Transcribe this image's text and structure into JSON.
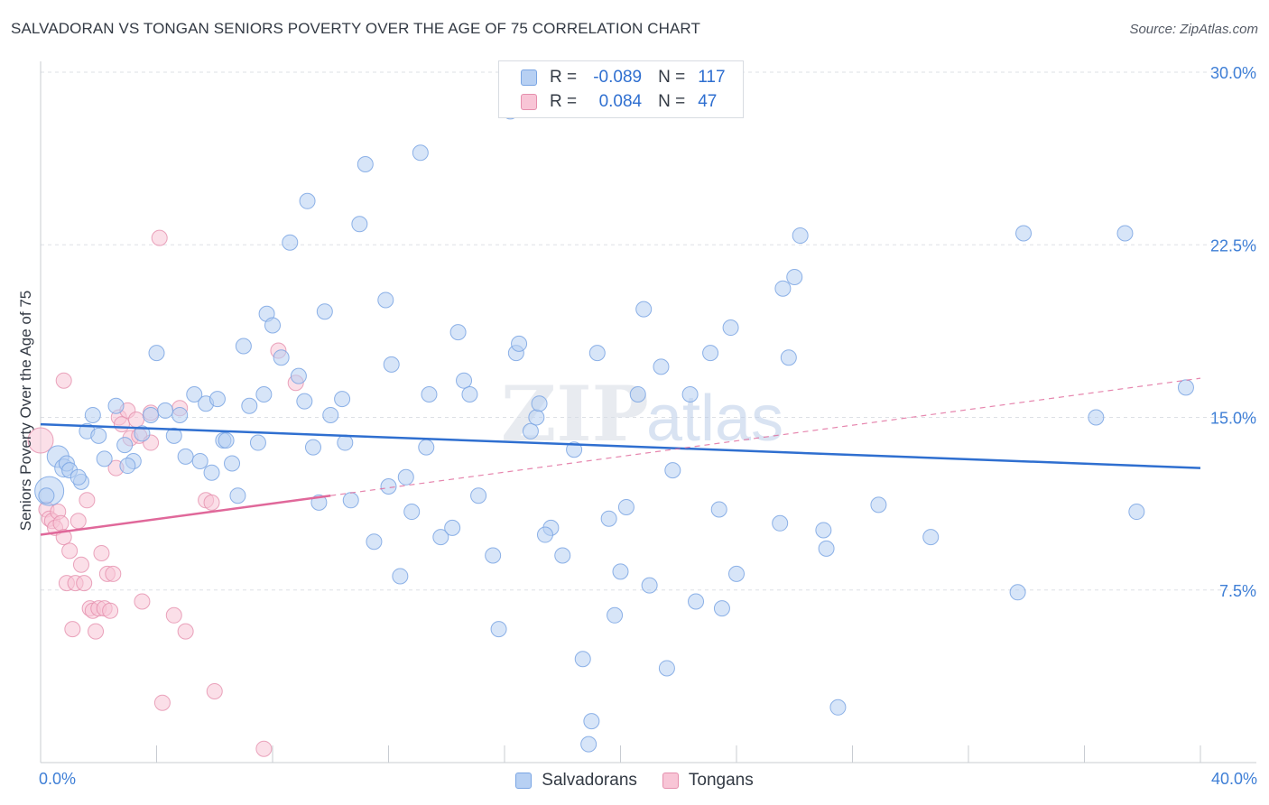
{
  "header": {
    "title": "SALVADORAN VS TONGAN SENIORS POVERTY OVER THE AGE OF 75 CORRELATION CHART",
    "source": "Source: ZipAtlas.com"
  },
  "watermark": {
    "zip": "ZIP",
    "atlas": "atlas"
  },
  "legend_top": {
    "rows": [
      {
        "r_label": "R =",
        "r_value": "-0.089",
        "n_label": "N =",
        "n_value": "117"
      },
      {
        "r_label": "R =",
        "r_value": "0.084",
        "n_label": "N =",
        "n_value": "47"
      }
    ]
  },
  "legend_bottom": {
    "items": [
      "Salvadorans",
      "Tongans"
    ]
  },
  "colors": {
    "blue_fill": "#b7d0f3",
    "blue_stroke": "#7aa5e3",
    "blue_line": "#2f6fd0",
    "pink_fill": "#f8c5d6",
    "pink_stroke": "#e58fad",
    "pink_line": "#e0689a",
    "tick_label": "#3f7fd6",
    "grid": "#dde0e5"
  },
  "chart_data": {
    "type": "scatter",
    "title": "SALVADORAN VS TONGAN SENIORS POVERTY OVER THE AGE OF 75 CORRELATION CHART",
    "xlabel": "",
    "ylabel": "Seniors Poverty Over the Age of 75",
    "xlim": [
      0,
      40
    ],
    "ylim": [
      0,
      30
    ],
    "x_ticks": [
      0,
      4,
      8,
      12,
      16,
      20,
      24,
      28,
      32,
      36,
      40
    ],
    "x_tick_labels": {
      "min": "0.0%",
      "max": "40.0%"
    },
    "y_ticks": [
      7.5,
      15.0,
      22.5,
      30.0
    ],
    "y_tick_labels": [
      "7.5%",
      "15.0%",
      "22.5%",
      "30.0%"
    ],
    "grid": true,
    "legend_position": "top-center",
    "series": [
      {
        "name": "Salvadorans",
        "r": -0.089,
        "n": 117,
        "trend": {
          "x": [
            0,
            40
          ],
          "y": [
            14.7,
            12.8
          ],
          "style": "solid"
        },
        "points": [
          [
            0.3,
            11.8
          ],
          [
            0.6,
            13.3
          ],
          [
            0.8,
            12.8
          ],
          [
            0.9,
            13.0
          ],
          [
            1.0,
            12.7
          ],
          [
            1.4,
            12.2
          ],
          [
            1.6,
            14.4
          ],
          [
            1.8,
            15.1
          ],
          [
            2.0,
            14.2
          ],
          [
            2.2,
            13.2
          ],
          [
            2.6,
            15.5
          ],
          [
            2.9,
            13.8
          ],
          [
            3.2,
            13.1
          ],
          [
            3.5,
            14.3
          ],
          [
            3.8,
            15.1
          ],
          [
            4.0,
            17.8
          ],
          [
            4.3,
            15.3
          ],
          [
            4.6,
            14.2
          ],
          [
            4.8,
            15.1
          ],
          [
            5.0,
            13.3
          ],
          [
            5.3,
            16.0
          ],
          [
            5.5,
            13.1
          ],
          [
            5.7,
            15.6
          ],
          [
            5.9,
            12.6
          ],
          [
            6.1,
            15.8
          ],
          [
            6.3,
            14.0
          ],
          [
            6.6,
            13.0
          ],
          [
            6.8,
            11.6
          ],
          [
            7.0,
            18.1
          ],
          [
            7.2,
            15.5
          ],
          [
            7.5,
            13.9
          ],
          [
            7.7,
            16.0
          ],
          [
            7.8,
            19.5
          ],
          [
            8.0,
            19.0
          ],
          [
            8.3,
            17.6
          ],
          [
            8.6,
            22.6
          ],
          [
            8.9,
            16.8
          ],
          [
            9.1,
            15.7
          ],
          [
            9.4,
            13.7
          ],
          [
            9.6,
            11.3
          ],
          [
            9.8,
            19.6
          ],
          [
            10.0,
            15.1
          ],
          [
            10.4,
            15.8
          ],
          [
            10.5,
            13.9
          ],
          [
            10.7,
            11.4
          ],
          [
            11.0,
            23.4
          ],
          [
            11.2,
            26.0
          ],
          [
            11.5,
            9.6
          ],
          [
            11.9,
            20.1
          ],
          [
            12.1,
            17.3
          ],
          [
            12.4,
            8.1
          ],
          [
            12.6,
            12.4
          ],
          [
            12.8,
            10.9
          ],
          [
            13.1,
            26.5
          ],
          [
            13.3,
            13.7
          ],
          [
            13.4,
            16.0
          ],
          [
            13.8,
            9.8
          ],
          [
            14.2,
            10.2
          ],
          [
            14.4,
            18.7
          ],
          [
            14.6,
            16.6
          ],
          [
            14.8,
            16.0
          ],
          [
            15.1,
            11.6
          ],
          [
            15.6,
            9.0
          ],
          [
            15.8,
            5.8
          ],
          [
            16.2,
            28.3
          ],
          [
            16.4,
            17.8
          ],
          [
            16.5,
            18.2
          ],
          [
            16.9,
            14.4
          ],
          [
            17.1,
            15.0
          ],
          [
            17.2,
            15.6
          ],
          [
            17.6,
            10.2
          ],
          [
            18.0,
            9.0
          ],
          [
            18.4,
            13.6
          ],
          [
            18.7,
            4.5
          ],
          [
            18.9,
            0.8
          ],
          [
            19.0,
            1.8
          ],
          [
            19.2,
            17.8
          ],
          [
            19.6,
            10.6
          ],
          [
            19.8,
            6.4
          ],
          [
            20.0,
            8.3
          ],
          [
            20.2,
            11.1
          ],
          [
            20.6,
            16.0
          ],
          [
            20.8,
            19.7
          ],
          [
            21.0,
            7.7
          ],
          [
            21.4,
            17.2
          ],
          [
            21.6,
            4.1
          ],
          [
            21.8,
            12.7
          ],
          [
            22.4,
            16.0
          ],
          [
            22.6,
            7.0
          ],
          [
            23.1,
            17.8
          ],
          [
            23.4,
            11.0
          ],
          [
            23.5,
            6.7
          ],
          [
            23.8,
            18.9
          ],
          [
            24.0,
            8.2
          ],
          [
            25.5,
            10.4
          ],
          [
            25.6,
            20.6
          ],
          [
            25.8,
            17.6
          ],
          [
            26.0,
            21.1
          ],
          [
            26.2,
            22.9
          ],
          [
            27.0,
            10.1
          ],
          [
            27.1,
            9.3
          ],
          [
            27.5,
            2.4
          ],
          [
            28.9,
            11.2
          ],
          [
            30.7,
            9.8
          ],
          [
            33.7,
            7.4
          ],
          [
            33.9,
            23.0
          ],
          [
            36.4,
            15.0
          ],
          [
            37.4,
            23.0
          ],
          [
            37.8,
            10.9
          ],
          [
            39.5,
            16.3
          ],
          [
            0.2,
            11.6
          ],
          [
            1.3,
            12.4
          ],
          [
            3.0,
            12.9
          ],
          [
            6.4,
            14.0
          ],
          [
            9.2,
            24.4
          ],
          [
            12.0,
            12.0
          ],
          [
            17.4,
            9.9
          ]
        ]
      },
      {
        "name": "Tongans",
        "r": 0.084,
        "n": 47,
        "trend_solid": {
          "x": [
            0,
            10
          ],
          "y": [
            9.9,
            11.6
          ]
        },
        "trend_dashed": {
          "x": [
            10,
            40
          ],
          "y": [
            11.6,
            16.7
          ]
        },
        "points": [
          [
            0.0,
            14.0
          ],
          [
            0.2,
            11.0
          ],
          [
            0.3,
            10.6
          ],
          [
            0.4,
            10.5
          ],
          [
            0.5,
            10.2
          ],
          [
            0.6,
            10.9
          ],
          [
            0.7,
            10.4
          ],
          [
            0.8,
            9.8
          ],
          [
            0.8,
            16.6
          ],
          [
            0.9,
            7.8
          ],
          [
            1.0,
            9.2
          ],
          [
            1.1,
            5.8
          ],
          [
            1.2,
            7.8
          ],
          [
            1.3,
            10.5
          ],
          [
            1.4,
            8.6
          ],
          [
            1.5,
            7.8
          ],
          [
            1.6,
            11.4
          ],
          [
            1.7,
            6.7
          ],
          [
            1.8,
            6.6
          ],
          [
            1.9,
            5.7
          ],
          [
            2.0,
            6.7
          ],
          [
            2.1,
            9.1
          ],
          [
            2.2,
            6.7
          ],
          [
            2.3,
            8.2
          ],
          [
            2.4,
            6.6
          ],
          [
            2.5,
            8.2
          ],
          [
            2.6,
            12.8
          ],
          [
            2.7,
            15.0
          ],
          [
            2.8,
            14.7
          ],
          [
            3.0,
            15.3
          ],
          [
            3.1,
            14.1
          ],
          [
            3.3,
            14.9
          ],
          [
            3.4,
            14.2
          ],
          [
            3.5,
            7.0
          ],
          [
            3.8,
            13.9
          ],
          [
            3.8,
            15.2
          ],
          [
            4.1,
            22.8
          ],
          [
            4.2,
            2.6
          ],
          [
            4.6,
            6.4
          ],
          [
            4.8,
            15.4
          ],
          [
            5.0,
            5.7
          ],
          [
            5.7,
            11.4
          ],
          [
            5.9,
            11.3
          ],
          [
            6.0,
            3.1
          ],
          [
            7.7,
            0.6
          ],
          [
            8.2,
            17.9
          ],
          [
            8.8,
            16.5
          ]
        ]
      }
    ]
  }
}
